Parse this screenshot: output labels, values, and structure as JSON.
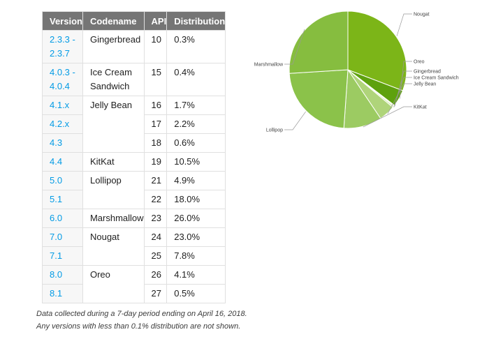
{
  "table": {
    "headers": [
      "Version",
      "Codename",
      "API",
      "Distribution"
    ],
    "rows": [
      {
        "version": "2.3.3 -\n2.3.7",
        "codename": "Gingerbread",
        "api": "10",
        "dist": "0.3%"
      },
      {
        "version": "4.0.3 -\n4.0.4",
        "codename": "Ice Cream Sandwich",
        "api": "15",
        "dist": "0.4%"
      },
      {
        "version": "4.1.x",
        "codename": "Jelly Bean",
        "api": "16",
        "dist": "1.7%"
      },
      {
        "version": "4.2.x",
        "codename": "",
        "api": "17",
        "dist": "2.2%"
      },
      {
        "version": "4.3",
        "codename": "",
        "api": "18",
        "dist": "0.6%"
      },
      {
        "version": "4.4",
        "codename": "KitKat",
        "api": "19",
        "dist": "10.5%"
      },
      {
        "version": "5.0",
        "codename": "Lollipop",
        "api": "21",
        "dist": "4.9%"
      },
      {
        "version": "5.1",
        "codename": "",
        "api": "22",
        "dist": "18.0%"
      },
      {
        "version": "6.0",
        "codename": "Marshmallow",
        "api": "23",
        "dist": "26.0%"
      },
      {
        "version": "7.0",
        "codename": "Nougat",
        "api": "24",
        "dist": "23.0%"
      },
      {
        "version": "7.1",
        "codename": "",
        "api": "25",
        "dist": "7.8%"
      },
      {
        "version": "8.0",
        "codename": "Oreo",
        "api": "26",
        "dist": "4.1%"
      },
      {
        "version": "8.1",
        "codename": "",
        "api": "27",
        "dist": "0.5%"
      }
    ]
  },
  "notes": [
    "Data collected during a 7-day period ending on April 16, 2018.",
    "Any versions with less than 0.1% distribution are not shown."
  ],
  "chart_data": {
    "type": "pie",
    "start": "top, clockwise",
    "slices": [
      {
        "label": "Nougat",
        "value": 30.8,
        "color": "#7cb518"
      },
      {
        "label": "Oreo",
        "value": 4.6,
        "color": "#5ea10e"
      },
      {
        "label": "Gingerbread",
        "value": 0.3,
        "color": "#d5e9b4"
      },
      {
        "label": "Ice Cream Sandwich",
        "value": 0.4,
        "color": "#c2df96"
      },
      {
        "label": "Jelly Bean",
        "value": 4.5,
        "color": "#afd47a"
      },
      {
        "label": "KitKat",
        "value": 10.5,
        "color": "#9ccb62"
      },
      {
        "label": "Lollipop",
        "value": 22.9,
        "color": "#8bc24a"
      },
      {
        "label": "Marshmallow",
        "value": 26.0,
        "color": "#86bd3f"
      }
    ]
  }
}
